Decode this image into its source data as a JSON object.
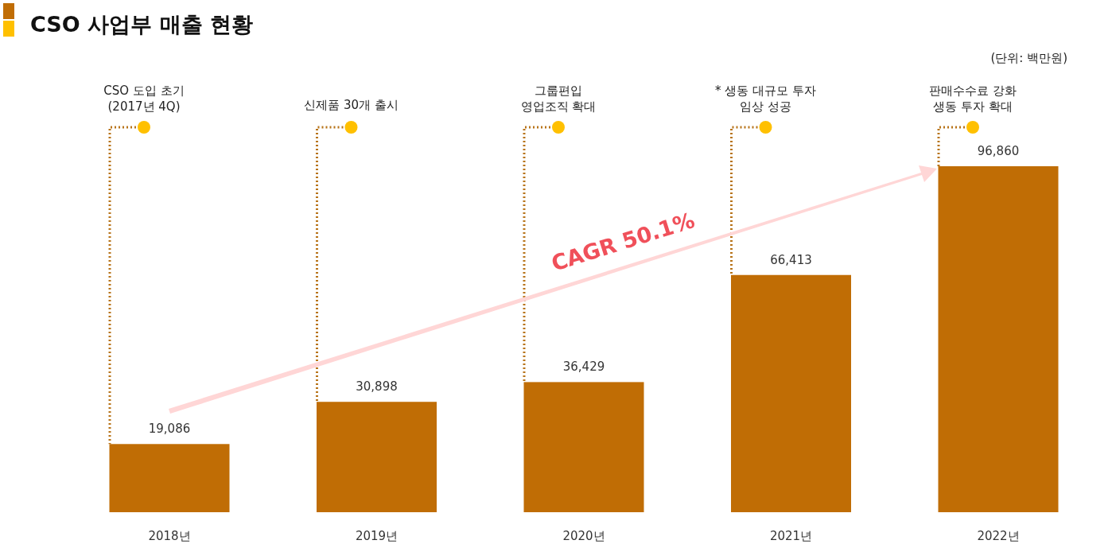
{
  "chart_data": {
    "type": "bar",
    "title": "CSO 사업부 매출 현황",
    "subtitle": "(단위: 백만원)",
    "categories": [
      "2018년",
      "2019년",
      "2020년",
      "2021년",
      "2022년"
    ],
    "values": [
      19086,
      30898,
      36429,
      66413,
      96860
    ],
    "color": "#c06d05",
    "value_labels": [
      "19,086",
      "30,898",
      "36,429",
      "66,413",
      "96,860"
    ],
    "annotations": [
      "CSO 도입 초기\n(2017년 4Q)",
      "신제품 30개 출시",
      "그룹편입\n영업조직 확대",
      "* 생동 대규모 투자\n임상 성공",
      "판매수수료 강화\n생동 투자 확대",
      "CAGR 50.1%"
    ]
  }
}
